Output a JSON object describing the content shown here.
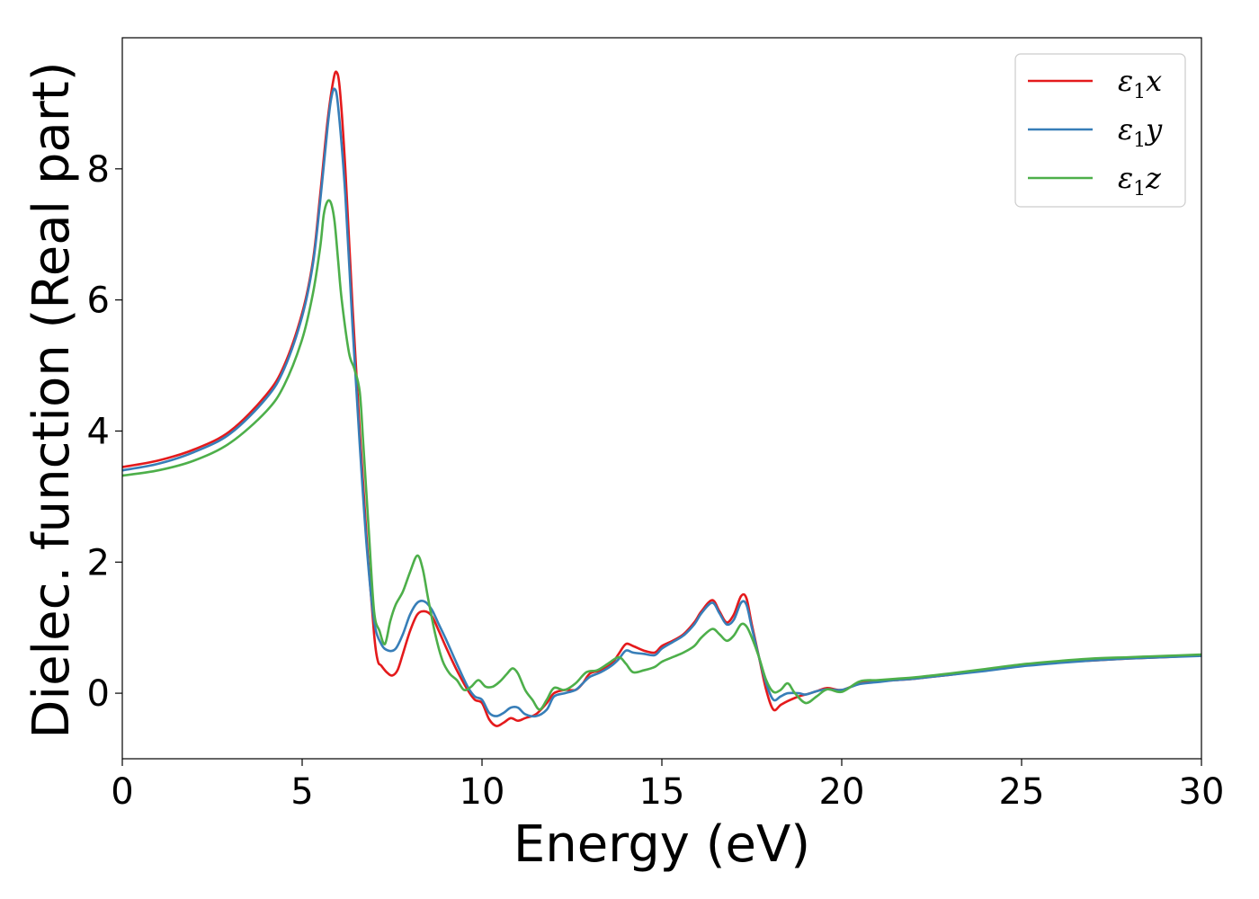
{
  "chart_data": {
    "type": "line",
    "title": "",
    "xlabel": "Energy (eV)",
    "ylabel": "Dielec. function (Real part)",
    "xlim": [
      0,
      30
    ],
    "ylim": [
      -1.0,
      10.0
    ],
    "xticks": [
      0,
      5,
      10,
      15,
      20,
      25,
      30
    ],
    "xtick_labels": [
      "0",
      "5",
      "10",
      "15",
      "20",
      "25",
      "30"
    ],
    "yticks": [
      0,
      2,
      4,
      6,
      8
    ],
    "ytick_labels": [
      "0",
      "2",
      "4",
      "6",
      "8"
    ],
    "grid": false,
    "legend_position": "top-right",
    "series": [
      {
        "name": "ε₁x",
        "legend": {
          "base": "ε",
          "sub": "1",
          "var": "x"
        },
        "color": "#e41a1c",
        "x": [
          0,
          1,
          2,
          3,
          4,
          4.5,
          5,
          5.3,
          5.5,
          5.7,
          5.85,
          5.95,
          6.05,
          6.2,
          6.4,
          6.6,
          6.8,
          7.0,
          7.1,
          7.2,
          7.35,
          7.5,
          7.65,
          7.8,
          8.0,
          8.2,
          8.4,
          8.6,
          8.8,
          9.0,
          9.3,
          9.6,
          9.8,
          10.0,
          10.2,
          10.4,
          10.6,
          10.8,
          11.0,
          11.2,
          11.5,
          11.8,
          12.0,
          12.3,
          12.6,
          12.8,
          13.0,
          13.3,
          13.6,
          13.8,
          14.0,
          14.2,
          14.5,
          14.8,
          15.0,
          15.3,
          15.6,
          15.9,
          16.1,
          16.4,
          16.6,
          16.8,
          17.0,
          17.2,
          17.35,
          17.5,
          17.7,
          17.9,
          18.1,
          18.3,
          18.5,
          18.8,
          19.0,
          19.3,
          19.6,
          20.0,
          20.5,
          21.0,
          21.5,
          22.0,
          22.5,
          23.0,
          24.0,
          25.0,
          26.0,
          27.0,
          28.0,
          29.0,
          30.0
        ],
        "values": [
          3.45,
          3.55,
          3.72,
          4.0,
          4.55,
          5.0,
          5.8,
          6.6,
          7.6,
          8.7,
          9.3,
          9.48,
          9.2,
          8.0,
          5.9,
          4.0,
          2.3,
          0.9,
          0.5,
          0.42,
          0.32,
          0.27,
          0.35,
          0.6,
          0.95,
          1.2,
          1.25,
          1.18,
          0.95,
          0.7,
          0.35,
          0.05,
          -0.1,
          -0.15,
          -0.4,
          -0.5,
          -0.45,
          -0.38,
          -0.42,
          -0.38,
          -0.32,
          -0.15,
          0.0,
          0.05,
          0.05,
          0.15,
          0.3,
          0.35,
          0.45,
          0.6,
          0.75,
          0.72,
          0.65,
          0.62,
          0.72,
          0.8,
          0.9,
          1.08,
          1.25,
          1.42,
          1.25,
          1.08,
          1.2,
          1.48,
          1.45,
          1.05,
          0.55,
          0.05,
          -0.25,
          -0.18,
          -0.12,
          -0.05,
          -0.02,
          0.03,
          0.08,
          0.05,
          0.15,
          0.18,
          0.2,
          0.22,
          0.25,
          0.28,
          0.35,
          0.42,
          0.47,
          0.5,
          0.53,
          0.55,
          0.58
        ]
      },
      {
        "name": "ε₁y",
        "legend": {
          "base": "ε",
          "sub": "1",
          "var": "y"
        },
        "color": "#377eb8",
        "x": [
          0,
          1,
          2,
          3,
          4,
          4.5,
          5,
          5.3,
          5.5,
          5.7,
          5.8,
          5.9,
          6.0,
          6.2,
          6.4,
          6.6,
          6.8,
          7.0,
          7.2,
          7.4,
          7.6,
          7.8,
          8.0,
          8.2,
          8.4,
          8.6,
          8.8,
          9.0,
          9.3,
          9.6,
          9.8,
          10.0,
          10.2,
          10.4,
          10.6,
          10.8,
          11.0,
          11.2,
          11.5,
          11.8,
          12.0,
          12.3,
          12.6,
          12.8,
          13.0,
          13.3,
          13.6,
          13.8,
          14.0,
          14.2,
          14.5,
          14.8,
          15.0,
          15.3,
          15.6,
          15.9,
          16.1,
          16.4,
          16.6,
          16.8,
          17.0,
          17.2,
          17.35,
          17.5,
          17.7,
          17.9,
          18.1,
          18.3,
          18.5,
          18.8,
          19.0,
          19.3,
          19.6,
          20.0,
          20.5,
          21.0,
          21.5,
          22.0,
          22.5,
          23.0,
          24.0,
          25.0,
          26.0,
          27.0,
          28.0,
          29.0,
          30.0
        ],
        "values": [
          3.4,
          3.5,
          3.68,
          3.96,
          4.5,
          4.95,
          5.75,
          6.55,
          7.5,
          8.6,
          9.05,
          9.22,
          8.95,
          7.6,
          5.6,
          3.8,
          2.2,
          1.1,
          0.75,
          0.65,
          0.68,
          0.9,
          1.2,
          1.38,
          1.4,
          1.28,
          1.05,
          0.82,
          0.45,
          0.1,
          -0.05,
          -0.1,
          -0.3,
          -0.35,
          -0.3,
          -0.22,
          -0.22,
          -0.32,
          -0.35,
          -0.25,
          -0.05,
          0.0,
          0.05,
          0.15,
          0.25,
          0.32,
          0.42,
          0.52,
          0.65,
          0.62,
          0.6,
          0.58,
          0.68,
          0.78,
          0.88,
          1.05,
          1.22,
          1.38,
          1.22,
          1.05,
          1.12,
          1.38,
          1.35,
          1.0,
          0.55,
          0.15,
          -0.1,
          -0.05,
          0.0,
          0.0,
          -0.02,
          0.03,
          0.06,
          0.05,
          0.14,
          0.17,
          0.2,
          0.22,
          0.25,
          0.28,
          0.34,
          0.41,
          0.46,
          0.5,
          0.53,
          0.55,
          0.57
        ]
      },
      {
        "name": "ε₁z",
        "legend": {
          "base": "ε",
          "sub": "1",
          "var": "z"
        },
        "color": "#4daf4a",
        "x": [
          0,
          1,
          2,
          3,
          4,
          4.5,
          5,
          5.3,
          5.5,
          5.6,
          5.7,
          5.8,
          5.9,
          6.0,
          6.1,
          6.3,
          6.45,
          6.6,
          6.7,
          6.85,
          7.0,
          7.15,
          7.3,
          7.45,
          7.6,
          7.8,
          8.0,
          8.2,
          8.35,
          8.5,
          8.7,
          8.9,
          9.1,
          9.3,
          9.5,
          9.7,
          9.9,
          10.1,
          10.3,
          10.5,
          10.7,
          10.85,
          11.0,
          11.2,
          11.4,
          11.6,
          11.8,
          12.0,
          12.3,
          12.6,
          12.9,
          13.2,
          13.5,
          13.8,
          14.0,
          14.2,
          14.5,
          14.8,
          15.0,
          15.3,
          15.6,
          15.9,
          16.1,
          16.4,
          16.6,
          16.8,
          17.0,
          17.2,
          17.35,
          17.5,
          17.7,
          17.9,
          18.1,
          18.3,
          18.5,
          18.7,
          19.0,
          19.3,
          19.6,
          20.0,
          20.5,
          21.0,
          21.5,
          22.0,
          22.5,
          23.0,
          24.0,
          25.0,
          26.0,
          27.0,
          28.0,
          29.0,
          30.0
        ],
        "values": [
          3.32,
          3.4,
          3.55,
          3.82,
          4.3,
          4.7,
          5.4,
          6.1,
          6.8,
          7.3,
          7.5,
          7.48,
          7.2,
          6.6,
          6.0,
          5.2,
          4.95,
          4.6,
          3.8,
          2.5,
          1.25,
          0.95,
          0.75,
          1.1,
          1.35,
          1.55,
          1.85,
          2.1,
          1.9,
          1.45,
          0.9,
          0.5,
          0.3,
          0.2,
          0.05,
          0.1,
          0.2,
          0.1,
          0.1,
          0.18,
          0.3,
          0.38,
          0.3,
          0.05,
          -0.1,
          -0.25,
          -0.1,
          0.08,
          0.05,
          0.15,
          0.32,
          0.35,
          0.45,
          0.55,
          0.45,
          0.32,
          0.35,
          0.4,
          0.48,
          0.55,
          0.62,
          0.72,
          0.85,
          0.98,
          0.9,
          0.8,
          0.88,
          1.05,
          1.02,
          0.85,
          0.55,
          0.2,
          0.02,
          0.05,
          0.15,
          0.0,
          -0.15,
          -0.05,
          0.06,
          0.02,
          0.18,
          0.2,
          0.22,
          0.24,
          0.27,
          0.3,
          0.37,
          0.44,
          0.49,
          0.53,
          0.55,
          0.57,
          0.59
        ]
      }
    ]
  }
}
